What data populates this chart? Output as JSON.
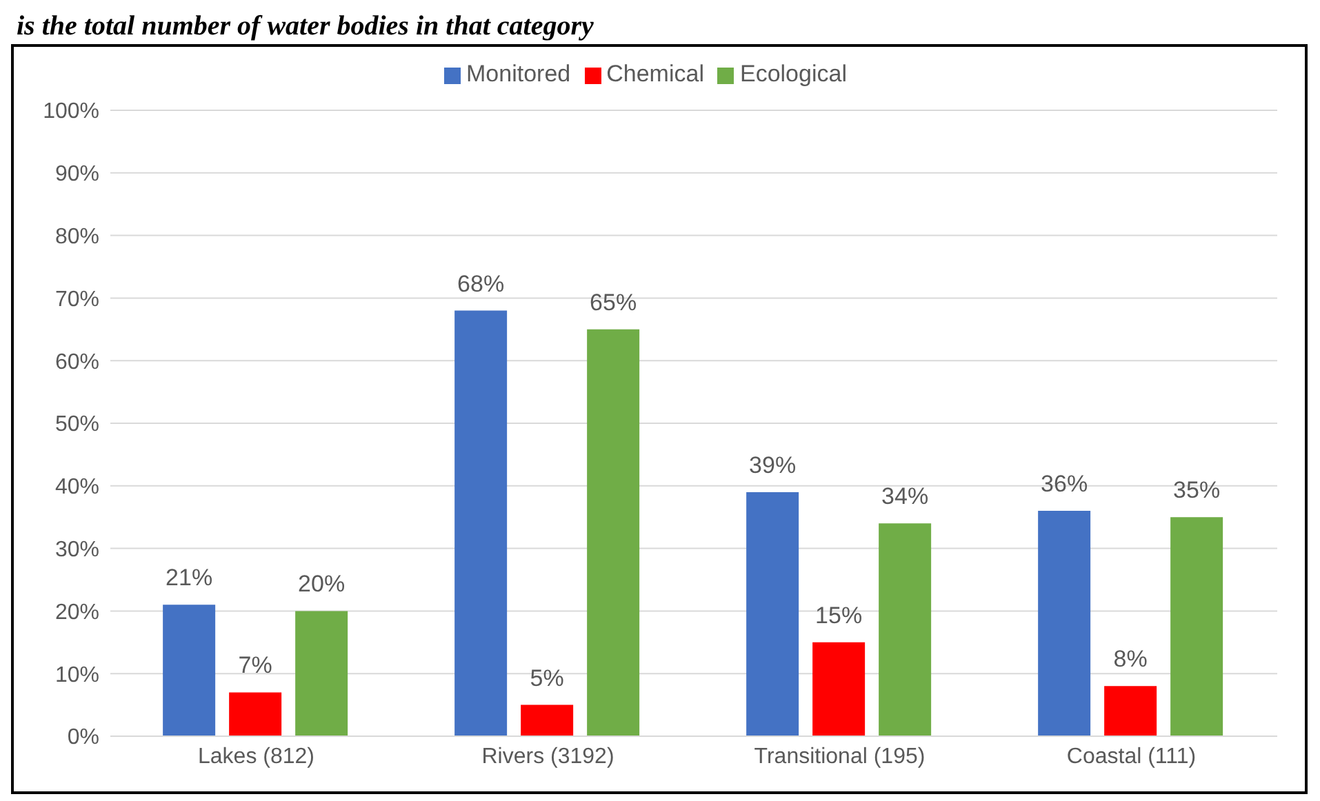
{
  "chart_data": {
    "type": "bar",
    "title": "is the total number of water bodies in that category",
    "categories": [
      "Lakes (812)",
      "Rivers (3192)",
      "Transitional (195)",
      "Coastal (111)"
    ],
    "series": [
      {
        "name": "Monitored",
        "color": "#4472c4",
        "values": [
          21,
          68,
          39,
          36
        ],
        "value_labels": [
          "21%",
          "68%",
          "39%",
          "36%"
        ]
      },
      {
        "name": "Chemical",
        "color": "#ff0000",
        "values": [
          7,
          5,
          15,
          8
        ],
        "value_labels": [
          "7%",
          "5%",
          "15%",
          "8%"
        ]
      },
      {
        "name": "Ecological",
        "color": "#70ad47",
        "values": [
          20,
          65,
          34,
          35
        ],
        "value_labels": [
          "20%",
          "65%",
          "34%",
          "35%"
        ]
      }
    ],
    "ylim": [
      0,
      100
    ],
    "yticks": [
      {
        "value": 0,
        "label": "0%"
      },
      {
        "value": 10,
        "label": "10%"
      },
      {
        "value": 20,
        "label": "20%"
      },
      {
        "value": 30,
        "label": "30%"
      },
      {
        "value": 40,
        "label": "40%"
      },
      {
        "value": 50,
        "label": "50%"
      },
      {
        "value": 60,
        "label": "60%"
      },
      {
        "value": 70,
        "label": "70%"
      },
      {
        "value": 80,
        "label": "80%"
      },
      {
        "value": 90,
        "label": "90%"
      },
      {
        "value": 100,
        "label": "100%"
      }
    ],
    "grid": "y",
    "legend": "top"
  }
}
